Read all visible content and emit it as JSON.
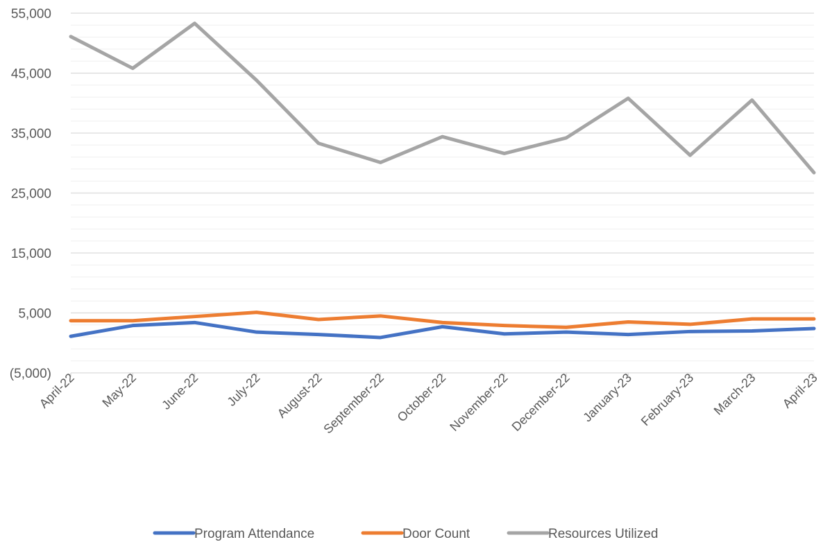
{
  "chart_data": {
    "type": "line",
    "title": "",
    "xlabel": "",
    "ylabel": "",
    "ylim": [
      -5000,
      55000
    ],
    "grid": true,
    "legend_position": "bottom",
    "y_ticks": [
      {
        "value": 55000,
        "label": "55,000"
      },
      {
        "value": 45000,
        "label": "45,000"
      },
      {
        "value": 35000,
        "label": "35,000"
      },
      {
        "value": 25000,
        "label": "25,000"
      },
      {
        "value": 15000,
        "label": "15,000"
      },
      {
        "value": 5000,
        "label": "5,000"
      },
      {
        "value": -5000,
        "label": "(5,000)"
      }
    ],
    "categories": [
      "April-22",
      "May-22",
      "June-22",
      "July-22",
      "August-22",
      "September-22",
      "October-22",
      "November-22",
      "December-22",
      "January-23",
      "February-23",
      "March-23",
      "April-23"
    ],
    "series": [
      {
        "name": "Program Attendance",
        "color": "#4472C4",
        "values": [
          1100,
          2900,
          3400,
          1800,
          1400,
          900,
          2700,
          1500,
          1800,
          1400,
          1900,
          2000,
          2400
        ]
      },
      {
        "name": "Door Count",
        "color": "#ED7D31",
        "values": [
          3700,
          3700,
          4400,
          5100,
          3900,
          4500,
          3400,
          2900,
          2600,
          3500,
          3100,
          4000,
          4000
        ]
      },
      {
        "name": "Resources Utilized",
        "color": "#A5A5A5",
        "values": [
          51100,
          45800,
          53300,
          43800,
          33300,
          30100,
          34400,
          31600,
          34200,
          40800,
          31300,
          40500,
          28400
        ]
      }
    ]
  }
}
